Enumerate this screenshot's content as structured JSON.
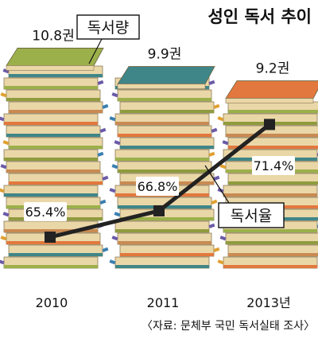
{
  "chart_data": {
    "type": "bar",
    "title": "성인 독서 추이",
    "categories": [
      "2010",
      "2011",
      "2013년"
    ],
    "series": [
      {
        "name": "독서량",
        "kind": "bar",
        "values": [
          10.8,
          9.9,
          9.2
        ],
        "labels": [
          "10.8권",
          "9.9권",
          "9.2권"
        ]
      },
      {
        "name": "독서율",
        "kind": "line",
        "values": [
          65.4,
          66.8,
          71.4
        ],
        "labels": [
          "65.4%",
          "66.8%",
          "71.4%"
        ]
      }
    ],
    "source": "〈자료: 문체부 국민 독서실태 조사〉"
  },
  "colors": {
    "book_top_2010": "#9bb04a",
    "book_top_2011": "#3f8688",
    "book_top_2013": "#e2783e",
    "page_edge": "#ead7a8",
    "line": "#222222"
  },
  "icons": [
    "book-stack"
  ]
}
